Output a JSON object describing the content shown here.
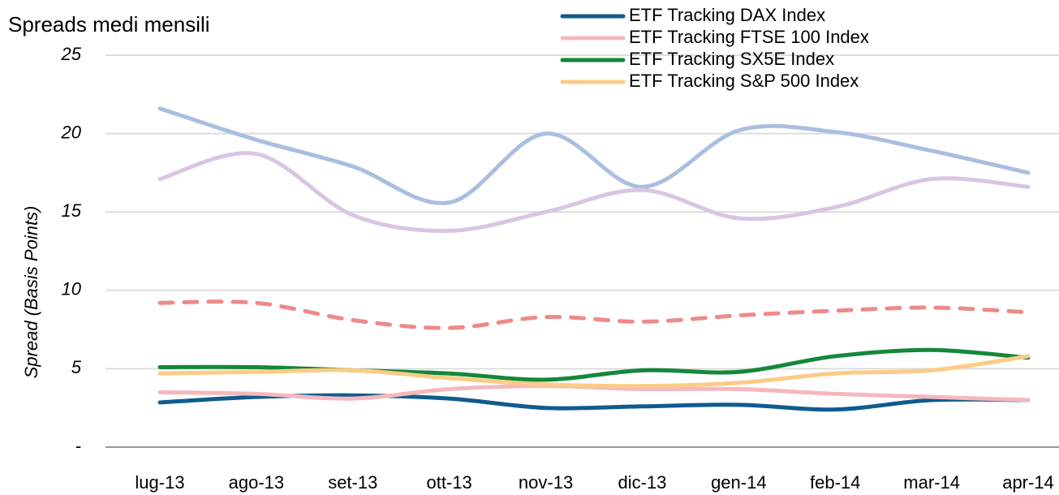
{
  "chart_data": {
    "type": "line",
    "title": "Spreads medi mensili",
    "y_label": "Spread (Basis Points)",
    "categories": [
      "lug-13",
      "ago-13",
      "set-13",
      "ott-13",
      "nov-13",
      "dic-13",
      "gen-14",
      "feb-14",
      "mar-14",
      "apr-14"
    ],
    "series": [
      {
        "color": "#a9bfe0",
        "values": [
          21.6,
          19.6,
          17.9,
          15.6,
          20.0,
          16.6,
          20.2,
          20.1,
          18.9,
          17.5
        ]
      },
      {
        "color": "#d9c5e3",
        "values": [
          17.1,
          18.7,
          14.8,
          13.8,
          15.0,
          16.4,
          14.6,
          15.3,
          17.1,
          16.6
        ]
      },
      {
        "color": "#ee8a8a",
        "dashed": true,
        "values": [
          9.2,
          9.2,
          8.1,
          7.6,
          8.3,
          8.0,
          8.4,
          8.7,
          8.9,
          8.6
        ]
      },
      {
        "name": "ETF Tracking DAX Index",
        "color": "#0f5c8f",
        "values": [
          2.85,
          3.2,
          3.3,
          3.1,
          2.5,
          2.6,
          2.7,
          2.4,
          3.0,
          3.0
        ]
      },
      {
        "name": "ETF Tracking FTSE 100 Index",
        "color": "#f5b8bd",
        "values": [
          3.5,
          3.4,
          3.1,
          3.7,
          3.9,
          3.7,
          3.7,
          3.4,
          3.2,
          3.0
        ]
      },
      {
        "name": "ETF Tracking SX5E Index",
        "color": "#15873a",
        "values": [
          5.1,
          5.1,
          4.9,
          4.7,
          4.3,
          4.9,
          4.8,
          5.8,
          6.2,
          5.7
        ]
      },
      {
        "name": "ETF Tracking S&P 500 Index",
        "color": "#fccb85",
        "values": [
          4.7,
          4.8,
          4.9,
          4.4,
          4.0,
          3.9,
          4.1,
          4.7,
          4.9,
          5.8
        ]
      }
    ],
    "ylim": [
      0,
      25
    ],
    "yticks": [
      {
        "value": 0,
        "label": "-"
      },
      5,
      10,
      15,
      20,
      25
    ],
    "grid": true,
    "legend": "upper right"
  }
}
